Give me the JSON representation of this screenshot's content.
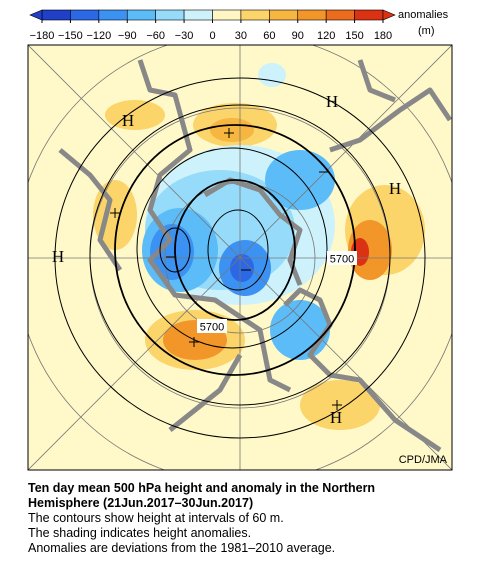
{
  "colorbar": {
    "title": "anomalies",
    "unit": "(m)",
    "ticks": [
      {
        "value": -180,
        "label": "−180"
      },
      {
        "value": -150,
        "label": "−150"
      },
      {
        "value": -120,
        "label": "−120"
      },
      {
        "value": -90,
        "label": "−90"
      },
      {
        "value": -60,
        "label": "−60"
      },
      {
        "value": -30,
        "label": "−30"
      },
      0,
      30,
      60,
      90,
      120,
      150,
      180
    ],
    "colors": [
      "#2040c8",
      "#2a68e6",
      "#3c92f2",
      "#5cbcf8",
      "#96dcfa",
      "#cdf2fc",
      "#fff6c4",
      "#fbd46a",
      "#f6b640",
      "#f2962a",
      "#ec6c1e",
      "#dc3214"
    ]
  },
  "map": {
    "highs": [
      "H",
      "H",
      "H",
      "H",
      "H"
    ],
    "contour_labels": [
      "5700",
      "5700"
    ],
    "credit": "CPD/JMA"
  },
  "caption": {
    "title": [
      "Ten day mean 500 hPa height and anomaly in the Northern",
      "Hemisphere (21Jun.2017–30Jun.2017)"
    ],
    "lines": [
      "The contours show height at intervals of 60 m.",
      "The shading indicates height anomalies.",
      "Anomalies are deviations from the 1981–2010 average."
    ]
  }
}
